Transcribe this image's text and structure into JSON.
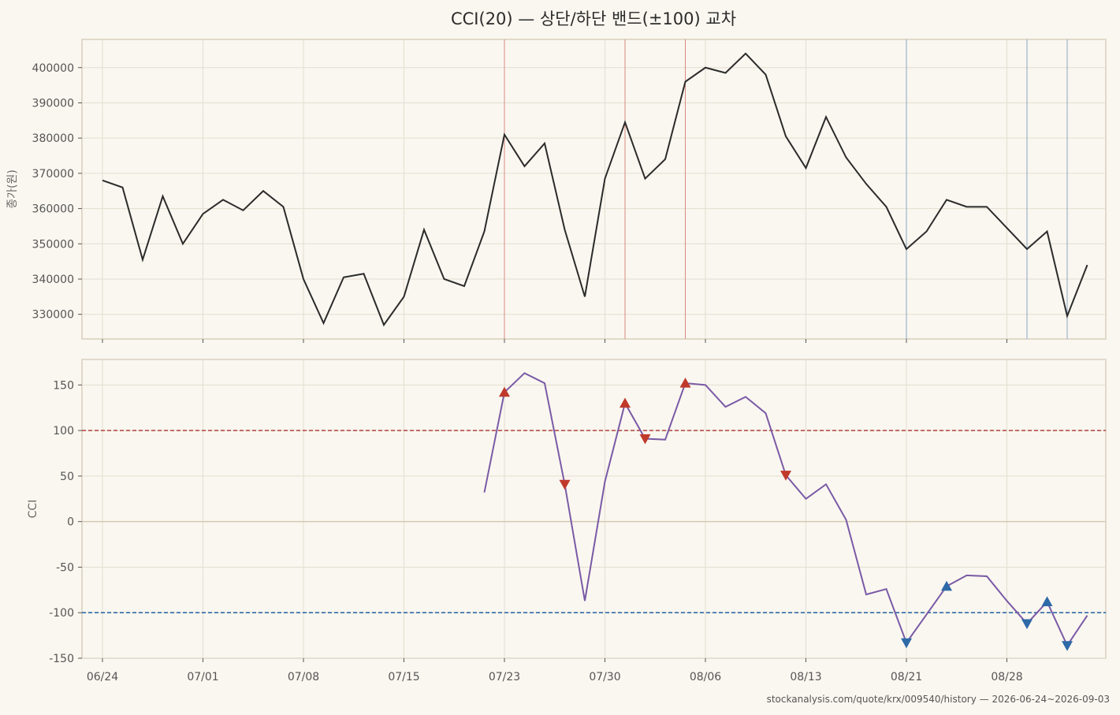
{
  "chart_data": {
    "type": "line",
    "title": "CCI(20) — 상단/하단 밴드(±100) 교차",
    "source": "stockanalysis.com/quote/krx/009540/history — 2026-06-24~2026-09-03",
    "colors": {
      "background": "#faf7f0",
      "grid": "#e4ded0",
      "frame": "#d8cfbd",
      "price_line": "#2b2b2b",
      "cci_line": "#7a5aa6",
      "upper_band": "#b0413e",
      "lower_band": "#2e6aa8",
      "up_marker_red": "#c0392b",
      "down_marker_red": "#c0392b",
      "up_marker_blue": "#2e6aa8",
      "down_marker_blue": "#2e6aa8"
    },
    "x_ticks": [
      {
        "label": "06/24",
        "index": 0
      },
      {
        "label": "07/01",
        "index": 5
      },
      {
        "label": "07/08",
        "index": 10
      },
      {
        "label": "07/15",
        "index": 15
      },
      {
        "label": "07/23",
        "index": 20
      },
      {
        "label": "07/30",
        "index": 25
      },
      {
        "label": "08/06",
        "index": 30
      },
      {
        "label": "08/13",
        "index": 35
      },
      {
        "label": "08/21",
        "index": 40
      },
      {
        "label": "08/28",
        "index": 45
      }
    ],
    "price_panel": {
      "ylabel": "종가(원)",
      "ylim": [
        323000,
        408000
      ],
      "yticks": [
        330000,
        340000,
        350000,
        360000,
        370000,
        380000,
        390000,
        400000
      ],
      "series": [
        {
          "values": [
            368000,
            366000,
            345500,
            363500,
            350000,
            358500,
            362500,
            359500,
            365000,
            360500,
            340000,
            327500,
            340500,
            341500,
            327000,
            335000,
            354000,
            340000,
            338000,
            353500,
            381000,
            372000,
            378500,
            354000,
            335000,
            368500,
            384500,
            368500,
            374000,
            396000,
            400000,
            398500,
            404000,
            398000,
            380500,
            371500,
            386000,
            374500,
            367000,
            360500,
            348500,
            353500,
            362500,
            360500,
            360500,
            354500,
            348500,
            353500,
            329500,
            344000
          ]
        }
      ],
      "signal_lines": [
        {
          "index": 20,
          "type": "upper-cross"
        },
        {
          "index": 26,
          "type": "upper-cross"
        },
        {
          "index": 29,
          "type": "upper-cross"
        },
        {
          "index": 40,
          "type": "lower-cross"
        },
        {
          "index": 46,
          "type": "lower-cross"
        },
        {
          "index": 48,
          "type": "lower-cross"
        }
      ]
    },
    "cci_panel": {
      "ylabel": "CCI",
      "ylim": [
        -150,
        178
      ],
      "yticks": [
        -150,
        -100,
        -50,
        0,
        50,
        100,
        150
      ],
      "upper_band": 100,
      "lower_band": -100,
      "series": [
        {
          "start_index": 19,
          "values": [
            32,
            142,
            163,
            152,
            41,
            -87,
            44,
            130,
            91,
            90,
            152,
            150,
            126,
            137,
            119,
            51,
            25,
            41,
            2,
            -80,
            -74,
            -133,
            -102,
            -71,
            -59,
            -60,
            -87,
            -112,
            -88,
            -136,
            -103
          ]
        }
      ],
      "markers": [
        {
          "index": 20,
          "value": 142,
          "direction": "up",
          "band": "upper"
        },
        {
          "index": 23,
          "value": 41,
          "direction": "down",
          "band": "upper"
        },
        {
          "index": 26,
          "value": 130,
          "direction": "up",
          "band": "upper"
        },
        {
          "index": 27,
          "value": 91,
          "direction": "down",
          "band": "upper"
        },
        {
          "index": 29,
          "value": 152,
          "direction": "up",
          "band": "upper"
        },
        {
          "index": 34,
          "value": 51,
          "direction": "down",
          "band": "upper"
        },
        {
          "index": 40,
          "value": -133,
          "direction": "down",
          "band": "lower"
        },
        {
          "index": 42,
          "value": -71,
          "direction": "up",
          "band": "lower"
        },
        {
          "index": 46,
          "value": -112,
          "direction": "down",
          "band": "lower"
        },
        {
          "index": 47,
          "value": -88,
          "direction": "up",
          "band": "lower"
        },
        {
          "index": 48,
          "value": -136,
          "direction": "down",
          "band": "lower"
        }
      ]
    }
  }
}
